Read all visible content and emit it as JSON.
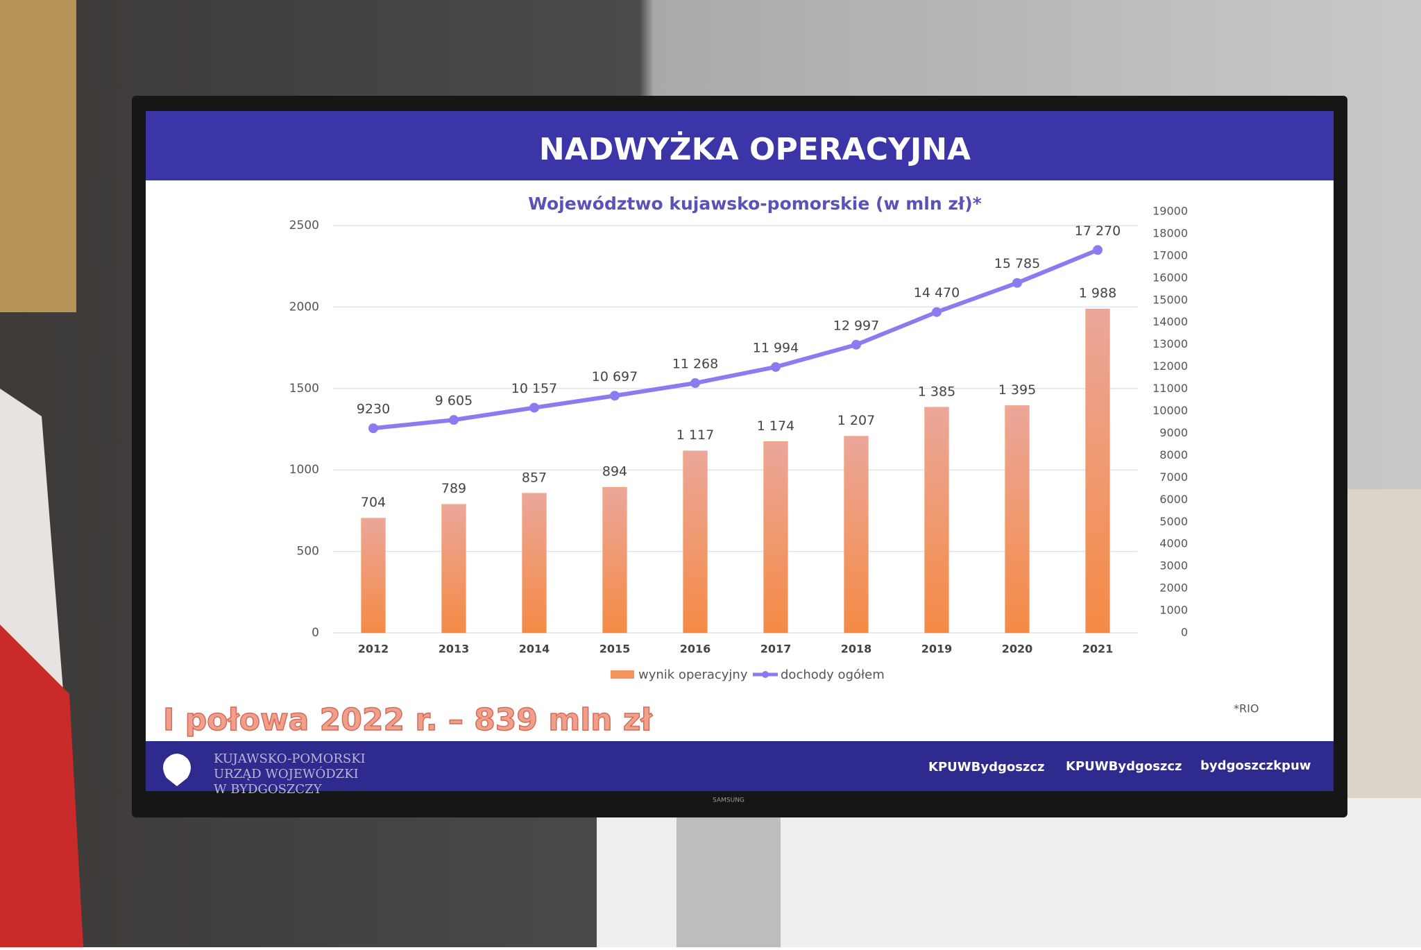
{
  "slide": {
    "title": "NADWYŻKA OPERACYJNA",
    "annotation": "I połowa 2022 r. – 839 mln zł",
    "source": "*RIO",
    "footer": {
      "org_lines": [
        "KUJAWSKO-POMORSKI",
        "URZĄD WOJEWÓDZKI",
        "W BYDGOSZCZY"
      ],
      "facebook": "KPUWBydgoszcz",
      "twitter": "KPUWBydgoszcz",
      "instagram": "bydgoszczkpuw"
    },
    "tv_brand": "SAMSUNG"
  },
  "chart_data": {
    "type": "bar",
    "title": "Województwo kujawsko-pomorskie (w mln zł)*",
    "categories": [
      "2012",
      "2013",
      "2014",
      "2015",
      "2016",
      "2017",
      "2018",
      "2019",
      "2020",
      "2021"
    ],
    "series": [
      {
        "name": "wynik operacyjny",
        "color": "#f4935a",
        "values": [
          704,
          789,
          857,
          894,
          1117,
          1174,
          1207,
          1385,
          1395,
          1988
        ],
        "value_labels": [
          "704",
          "789",
          "857",
          "894",
          "1 117",
          "1 174",
          "1 207",
          "1 385",
          "1 395",
          "1 988"
        ]
      },
      {
        "name": "dochody ogółem",
        "color": "#8a7cf0",
        "type": "line",
        "axis": "y2",
        "values": [
          9230,
          9605,
          10157,
          10697,
          11268,
          11994,
          12997,
          14470,
          15785,
          17270
        ],
        "value_labels": [
          "9230",
          "9 605",
          "10 157",
          "10 697",
          "11 268",
          "11 994",
          "12 997",
          "14 470",
          "15 785",
          "17 270"
        ]
      }
    ],
    "ylim": [
      0,
      2500
    ],
    "yticks": [
      0,
      500,
      1000,
      1500,
      2000,
      2500
    ],
    "y2lim": [
      0,
      19000
    ],
    "y2ticks": [
      0,
      1000,
      2000,
      3000,
      4000,
      5000,
      6000,
      7000,
      8000,
      9000,
      10000,
      11000,
      12000,
      13000,
      14000,
      15000,
      16000,
      17000,
      18000,
      19000
    ],
    "grid": true,
    "legend": "bottom"
  }
}
